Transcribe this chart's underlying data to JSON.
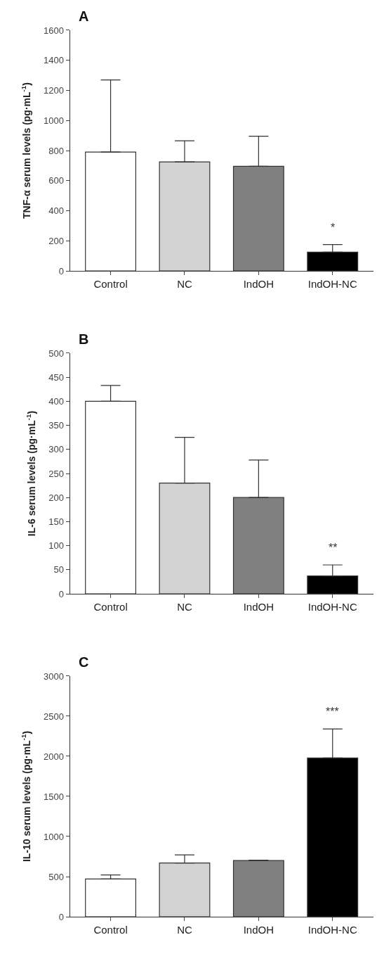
{
  "chart_data": [
    {
      "type": "bar",
      "title": "A",
      "ylabel": "TNF-α serum levels (pg·mL$^{-1}$)",
      "categories": [
        "Control",
        "NC",
        "IndOH",
        "IndOH-NC"
      ],
      "values": [
        790,
        725,
        695,
        125
      ],
      "errors": [
        [
          790,
          1270
        ],
        [
          725,
          865
        ],
        [
          695,
          895
        ],
        [
          125,
          175
        ]
      ],
      "colors": [
        "#ffffff",
        "#d3d3d3",
        "#808080",
        "#000000"
      ],
      "ylim": [
        0,
        1600
      ],
      "yticks": [
        0,
        200,
        400,
        600,
        800,
        1000,
        1200,
        1400,
        1600
      ],
      "annotations": [
        "*"
      ]
    },
    {
      "type": "bar",
      "title": "B",
      "ylabel": "IL-6 serum levels (pg·mL$^{-1}$)",
      "categories": [
        "Control",
        "NC",
        "IndOH",
        "IndOH-NC"
      ],
      "values": [
        400,
        230,
        200,
        37
      ],
      "errors": [
        [
          400,
          433
        ],
        [
          230,
          325
        ],
        [
          200,
          278
        ],
        [
          37,
          60
        ]
      ],
      "colors": [
        "#ffffff",
        "#d3d3d3",
        "#808080",
        "#000000"
      ],
      "ylim": [
        0,
        500
      ],
      "yticks": [
        0,
        50,
        100,
        150,
        200,
        250,
        300,
        350,
        400,
        450,
        500
      ],
      "annotations": [
        "**"
      ]
    },
    {
      "type": "bar",
      "title": "C",
      "ylabel": "IL-10 serum levels (pg·mL$^{-1}$)",
      "categories": [
        "Control",
        "NC",
        "IndOH",
        "IndOH-NC"
      ],
      "values": [
        470,
        670,
        700,
        1980
      ],
      "errors": [
        [
          470,
          520
        ],
        [
          670,
          770
        ],
        [
          700,
          705
        ],
        [
          1980,
          2340
        ]
      ],
      "colors": [
        "#ffffff",
        "#d3d3d3",
        "#808080",
        "#000000"
      ],
      "ylim": [
        0,
        3000
      ],
      "yticks": [
        0,
        500,
        1000,
        1500,
        2000,
        2500,
        3000
      ],
      "annotations": [
        "***"
      ]
    }
  ]
}
